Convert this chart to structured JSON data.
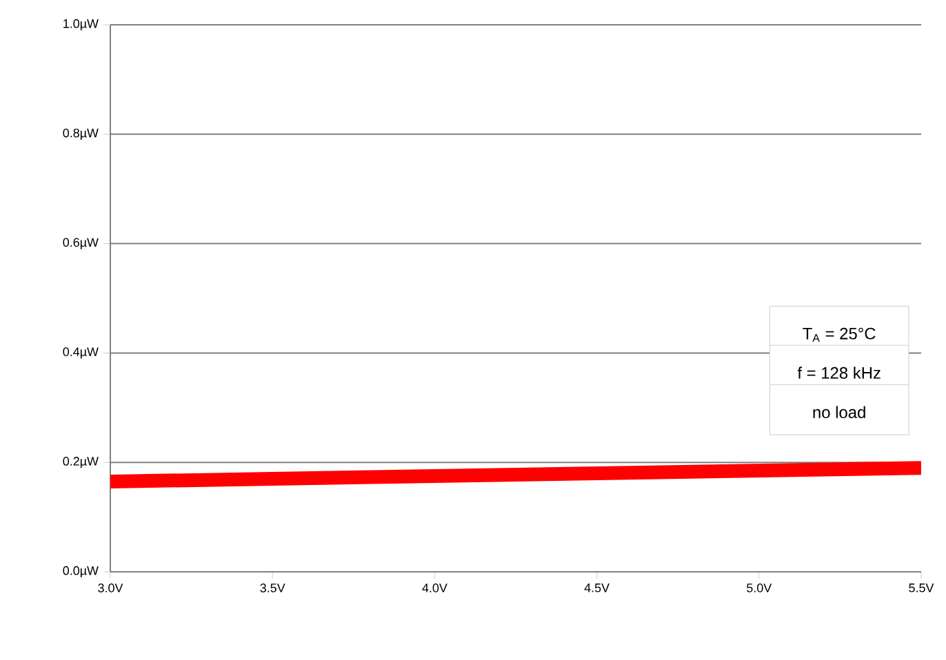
{
  "chart_data": {
    "type": "line",
    "x": [
      3.0,
      3.5,
      4.0,
      4.5,
      5.0,
      5.5
    ],
    "series": [
      {
        "color": "#ff0000",
        "values": [
          0.165,
          0.17,
          0.175,
          0.18,
          0.185,
          0.19
        ]
      }
    ],
    "xlim": [
      3.0,
      5.5
    ],
    "ylim": [
      0.0,
      1.0
    ],
    "xticks": [
      {
        "value": 3.0,
        "label": "3.0V"
      },
      {
        "value": 3.5,
        "label": "3.5V"
      },
      {
        "value": 4.0,
        "label": "4.0V"
      },
      {
        "value": 4.5,
        "label": "4.5V"
      },
      {
        "value": 5.0,
        "label": "5.0V"
      },
      {
        "value": 5.5,
        "label": "5.5V"
      }
    ],
    "yticks": [
      {
        "value": 0.0,
        "label": "0.0µW"
      },
      {
        "value": 0.2,
        "label": "0.2µW"
      },
      {
        "value": 0.4,
        "label": "0.4µW"
      },
      {
        "value": 0.6,
        "label": "0.6µW"
      },
      {
        "value": 0.8,
        "label": "0.8µW"
      },
      {
        "value": 1.0,
        "label": "1.0µW"
      }
    ],
    "grid": "y",
    "annotations": [
      "T$_{A}$ = 25°C",
      "f = 128 kHz",
      "no load"
    ]
  }
}
